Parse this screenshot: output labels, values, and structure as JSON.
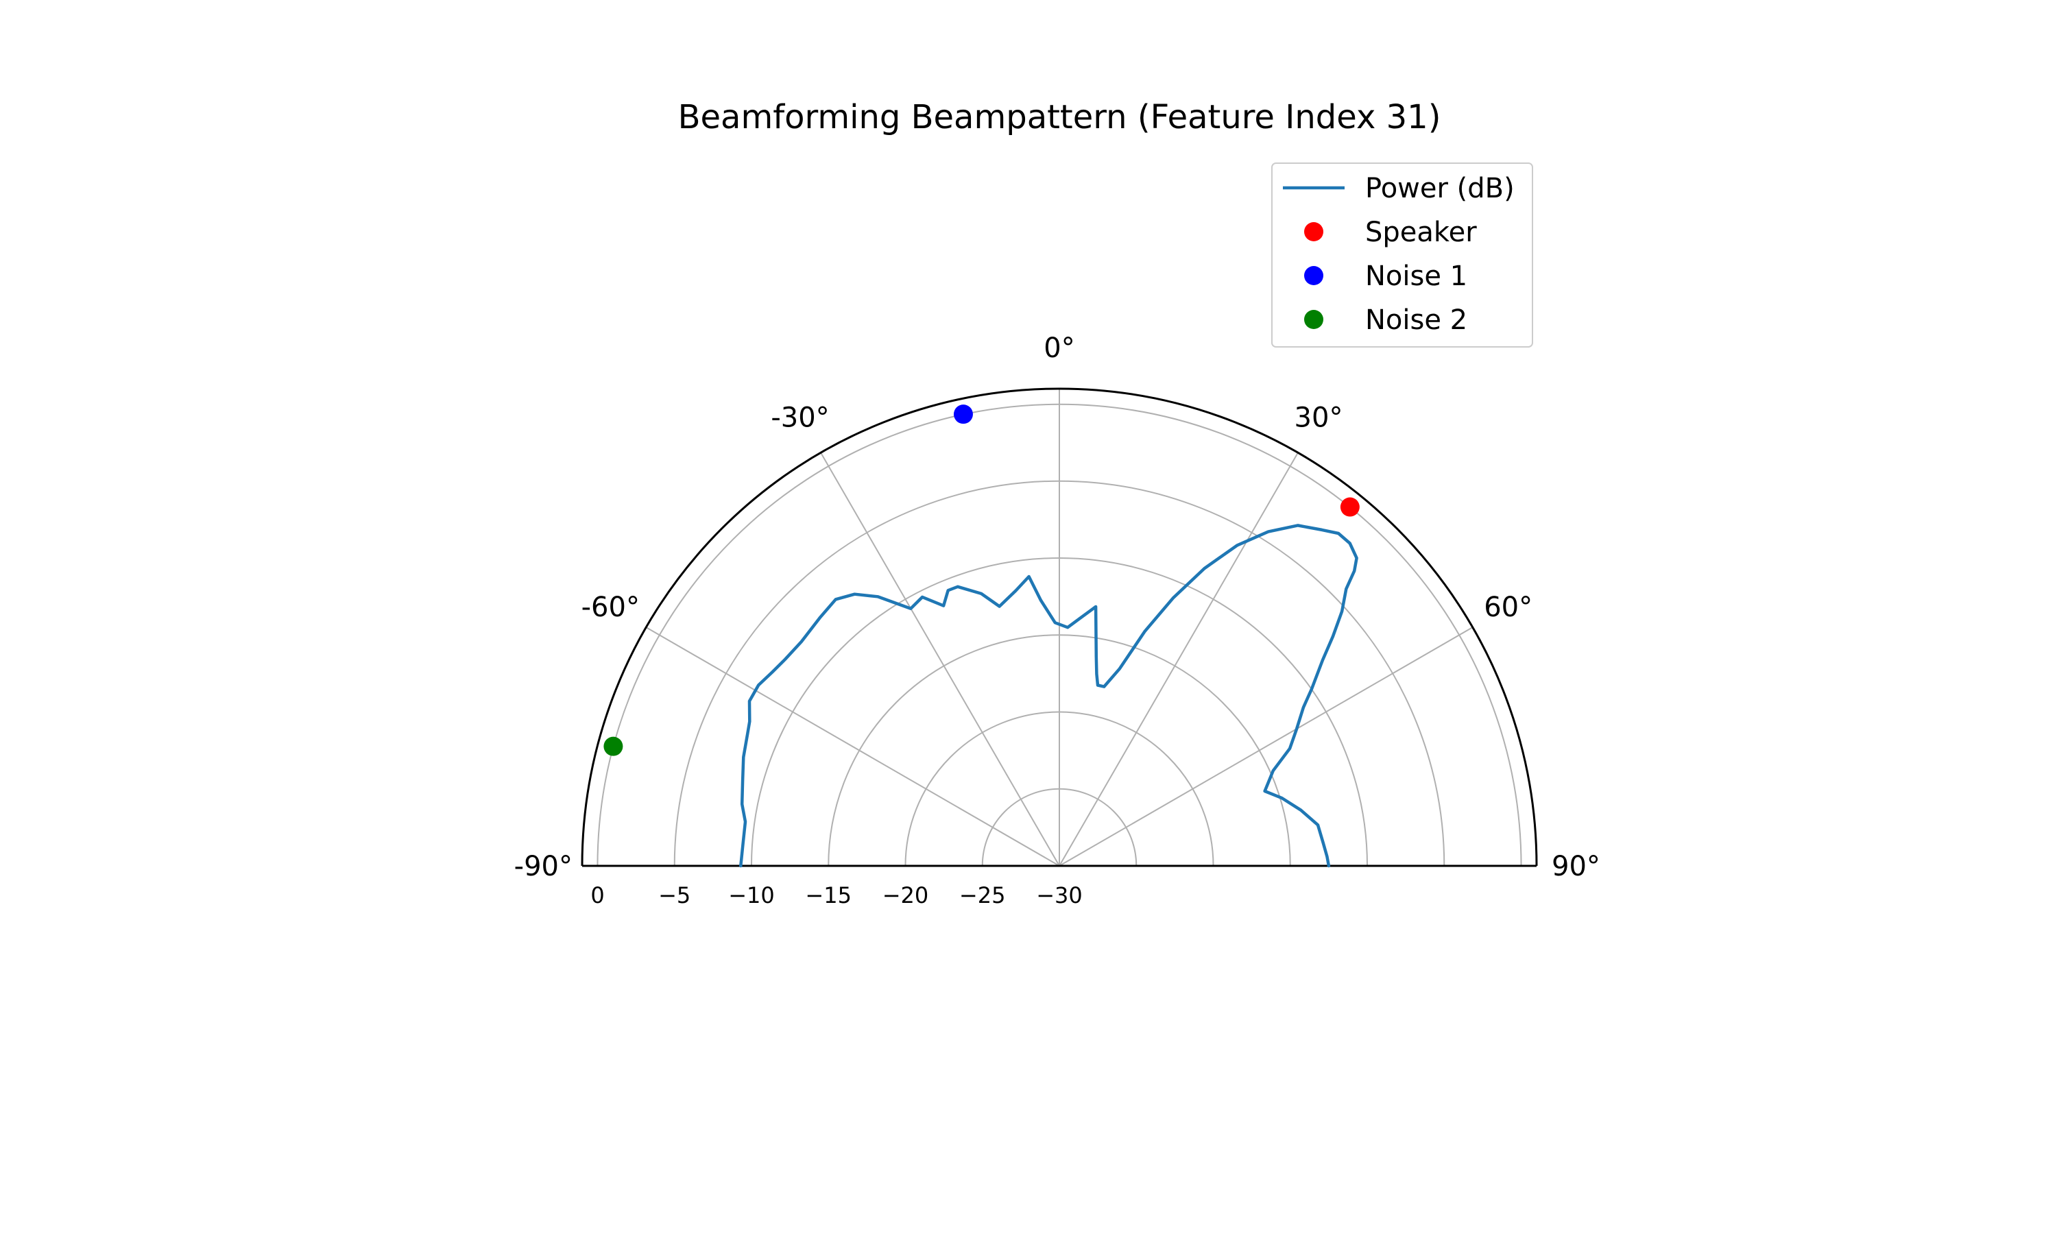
{
  "chart_data": {
    "type": "polar-line",
    "title": "Beamforming Beampattern (Feature Index 31)",
    "theta_range_deg": [
      -90,
      90
    ],
    "theta_direction": "clockwise",
    "theta_zero_location": "top",
    "theta_ticks_deg": [
      -90,
      -60,
      -30,
      0,
      30,
      60,
      90
    ],
    "theta_tick_labels": [
      "-90°",
      "-60°",
      "-30°",
      "0°",
      "30°",
      "60°",
      "90°"
    ],
    "r_range": [
      -30,
      1
    ],
    "r_ticks": [
      0,
      -5,
      -10,
      -15,
      -20,
      -25,
      -30
    ],
    "r_tick_labels": [
      "0",
      "−5",
      "−10",
      "−15",
      "−20",
      "−25",
      "−30"
    ],
    "grid": true,
    "legend": {
      "placement": "top-right",
      "entries": [
        {
          "label": "Power (dB)",
          "kind": "line",
          "color": "#1f77b4"
        },
        {
          "label": "Speaker",
          "kind": "marker",
          "color": "#ff0000"
        },
        {
          "label": "Noise 1",
          "kind": "marker",
          "color": "#0000ff"
        },
        {
          "label": "Noise 2",
          "kind": "marker",
          "color": "#008000"
        }
      ]
    },
    "series": [
      {
        "name": "Power (dB)",
        "color": "#1f77b4",
        "theta_deg": [
          -90,
          -86,
          -82,
          -79,
          -75,
          -71,
          -67,
          -65,
          -62,
          -59,
          -56,
          -53,
          -49,
          -44,
          -40,
          -37,
          -34,
          -30,
          -27,
          -24,
          -22,
          -20,
          -16,
          -13,
          -9,
          -6,
          -4,
          -1,
          2,
          5,
          8,
          10,
          11,
          12,
          14,
          17,
          20,
          23,
          26,
          29,
          32,
          35,
          38,
          40,
          42,
          44,
          45,
          46,
          48,
          50,
          52,
          55,
          57,
          60,
          63,
          66,
          70,
          73,
          77,
          81,
          85,
          88,
          90
        ],
        "r": [
          -9.3,
          -9.4,
          -9.4,
          -9.0,
          -8.7,
          -8.3,
          -8.0,
          -7.8,
          -7.2,
          -7.2,
          -7.5,
          -7.7,
          -7.8,
          -7.6,
          -7.4,
          -7.9,
          -8.9,
          -10.7,
          -10.4,
          -11.5,
          -10.7,
          -10.7,
          -11.6,
          -12.7,
          -11.9,
          -11.1,
          -12.7,
          -14.2,
          -14.5,
          -13.8,
          -13.0,
          -16.2,
          -17.3,
          -18.0,
          -18.0,
          -16.6,
          -13.8,
          -11.1,
          -8.5,
          -6.2,
          -4.4,
          -3.0,
          -2.3,
          -1.8,
          -1.8,
          -2.2,
          -2.9,
          -4.1,
          -5.3,
          -6.8,
          -8.3,
          -10.0,
          -11.1,
          -12.2,
          -13.2,
          -14.8,
          -15.8,
          -14.9,
          -13.9,
          -13.0,
          -12.8,
          -12.6,
          -12.5
        ]
      }
    ],
    "markers": [
      {
        "name": "Speaker",
        "theta_deg": 39,
        "r": 0,
        "color": "#ff0000"
      },
      {
        "name": "Noise 1",
        "theta_deg": -12,
        "r": 0,
        "color": "#0000ff"
      },
      {
        "name": "Noise 2",
        "theta_deg": -75,
        "r": 0,
        "color": "#008000"
      }
    ]
  }
}
